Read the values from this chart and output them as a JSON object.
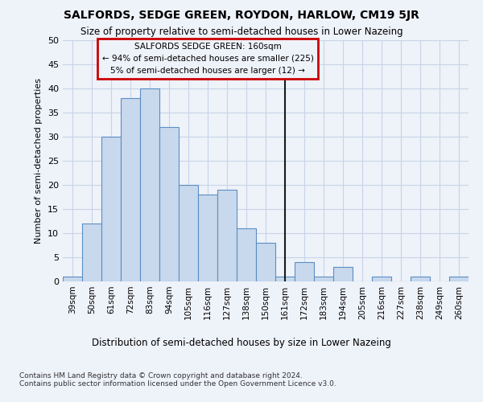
{
  "title": "SALFORDS, SEDGE GREEN, ROYDON, HARLOW, CM19 5JR",
  "subtitle": "Size of property relative to semi-detached houses in Lower Nazeing",
  "xlabel_dist": "Distribution of semi-detached houses by size in Lower Nazeing",
  "ylabel": "Number of semi-detached properties",
  "footnote": "Contains HM Land Registry data © Crown copyright and database right 2024.\nContains public sector information licensed under the Open Government Licence v3.0.",
  "categories": [
    "39sqm",
    "50sqm",
    "61sqm",
    "72sqm",
    "83sqm",
    "94sqm",
    "105sqm",
    "116sqm",
    "127sqm",
    "138sqm",
    "150sqm",
    "161sqm",
    "172sqm",
    "183sqm",
    "194sqm",
    "205sqm",
    "216sqm",
    "227sqm",
    "238sqm",
    "249sqm",
    "260sqm"
  ],
  "values": [
    1,
    12,
    30,
    38,
    40,
    32,
    20,
    18,
    19,
    11,
    8,
    1,
    4,
    1,
    3,
    0,
    1,
    0,
    1,
    0,
    1
  ],
  "bar_color": "#c8d9ed",
  "bar_edge_color": "#5b8ec4",
  "vline_x": 11,
  "vline_color": "#1a1a1a",
  "annotation_line1": "SALFORDS SEDGE GREEN: 160sqm",
  "annotation_line2": "← 94% of semi-detached houses are smaller (225)",
  "annotation_line3": "5% of semi-detached houses are larger (12) →",
  "annotation_box_color": "#cc0000",
  "grid_color": "#c8d4e8",
  "background_color": "#eef2f9",
  "ylim": [
    0,
    50
  ],
  "yticks": [
    0,
    5,
    10,
    15,
    20,
    25,
    30,
    35,
    40,
    45,
    50
  ]
}
